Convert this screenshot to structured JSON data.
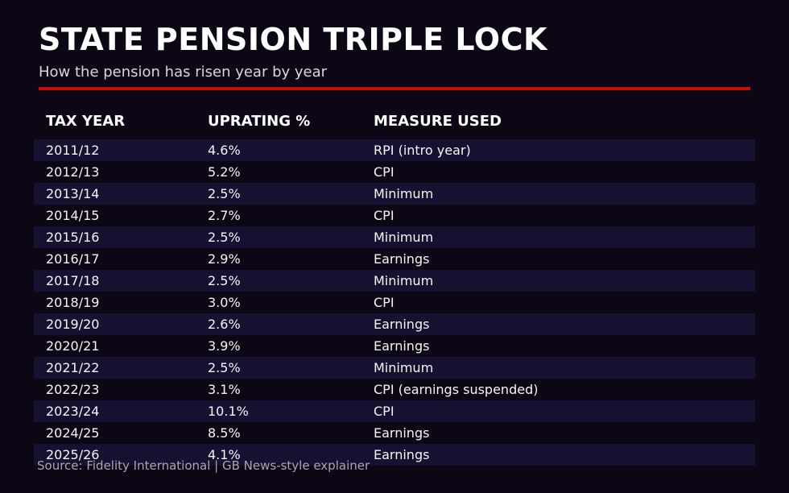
{
  "page": {
    "title": "STATE PENSION TRIPLE LOCK",
    "subtitle": "How the pension has risen year by year",
    "source": "Source: Fidelity International | GB News-style explainer"
  },
  "colors": {
    "background": "#0d0715",
    "row_stripe": "#161130",
    "accent_red": "#cb0a0a",
    "text_primary": "#ffffff",
    "text_subtitle": "#d8d6dd",
    "text_muted": "#a9a6b2"
  },
  "chart_data": {
    "type": "table",
    "title": "STATE PENSION TRIPLE LOCK",
    "subtitle": "How the pension has risen year by year",
    "columns": [
      "TAX YEAR",
      "UPRATING %",
      "MEASURE USED"
    ],
    "rows": [
      [
        "2011/12",
        "4.6%",
        "RPI (intro year)"
      ],
      [
        "2012/13",
        "5.2%",
        "CPI"
      ],
      [
        "2013/14",
        "2.5%",
        "Minimum"
      ],
      [
        "2014/15",
        "2.7%",
        "CPI"
      ],
      [
        "2015/16",
        "2.5%",
        "Minimum"
      ],
      [
        "2016/17",
        "2.9%",
        "Earnings"
      ],
      [
        "2017/18",
        "2.5%",
        "Minimum"
      ],
      [
        "2018/19",
        "3.0%",
        "CPI"
      ],
      [
        "2019/20",
        "2.6%",
        "Earnings"
      ],
      [
        "2020/21",
        "3.9%",
        "Earnings"
      ],
      [
        "2021/22",
        "2.5%",
        "Minimum"
      ],
      [
        "2022/23",
        "3.1%",
        "CPI (earnings suspended)"
      ],
      [
        "2023/24",
        "10.1%",
        "CPI"
      ],
      [
        "2024/25",
        "8.5%",
        "Earnings"
      ],
      [
        "2025/26",
        "4.1%",
        "Earnings"
      ]
    ],
    "uprating_values_pct": [
      4.6,
      5.2,
      2.5,
      2.7,
      2.5,
      2.9,
      2.5,
      3.0,
      2.6,
      3.9,
      2.5,
      3.1,
      10.1,
      8.5,
      4.1
    ],
    "layout": {
      "striped_rows": "odd",
      "grid": false,
      "legend": "none"
    }
  }
}
